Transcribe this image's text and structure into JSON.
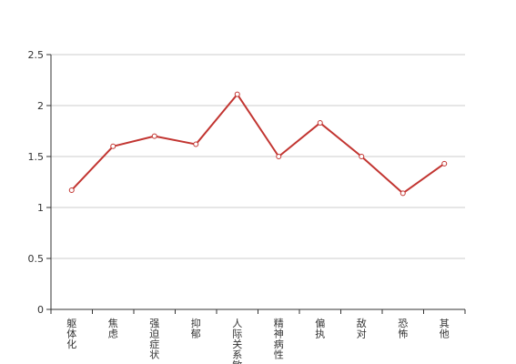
{
  "chart_data": {
    "type": "line",
    "categories": [
      "躯体化",
      "焦虑",
      "强迫症状",
      "抑郁",
      "人际关系敏感",
      "精神病性",
      "偏执",
      "敌对",
      "恐怖",
      "其他"
    ],
    "series": [
      {
        "values": [
          1.17,
          1.6,
          1.7,
          1.62,
          2.11,
          1.5,
          1.83,
          1.5,
          1.14,
          1.43
        ]
      }
    ],
    "ylim": [
      0,
      2.5
    ],
    "yticks": [
      0,
      0.5,
      1,
      1.5,
      2,
      2.5
    ],
    "ytick_labels": [
      "0",
      "0.5",
      "1",
      "1.5",
      "2",
      "2.5"
    ],
    "grid": true,
    "line_color": "#c23531",
    "marker_fill": "#ffffff",
    "grid_color": "#cccccc",
    "axis_color": "#333333"
  }
}
